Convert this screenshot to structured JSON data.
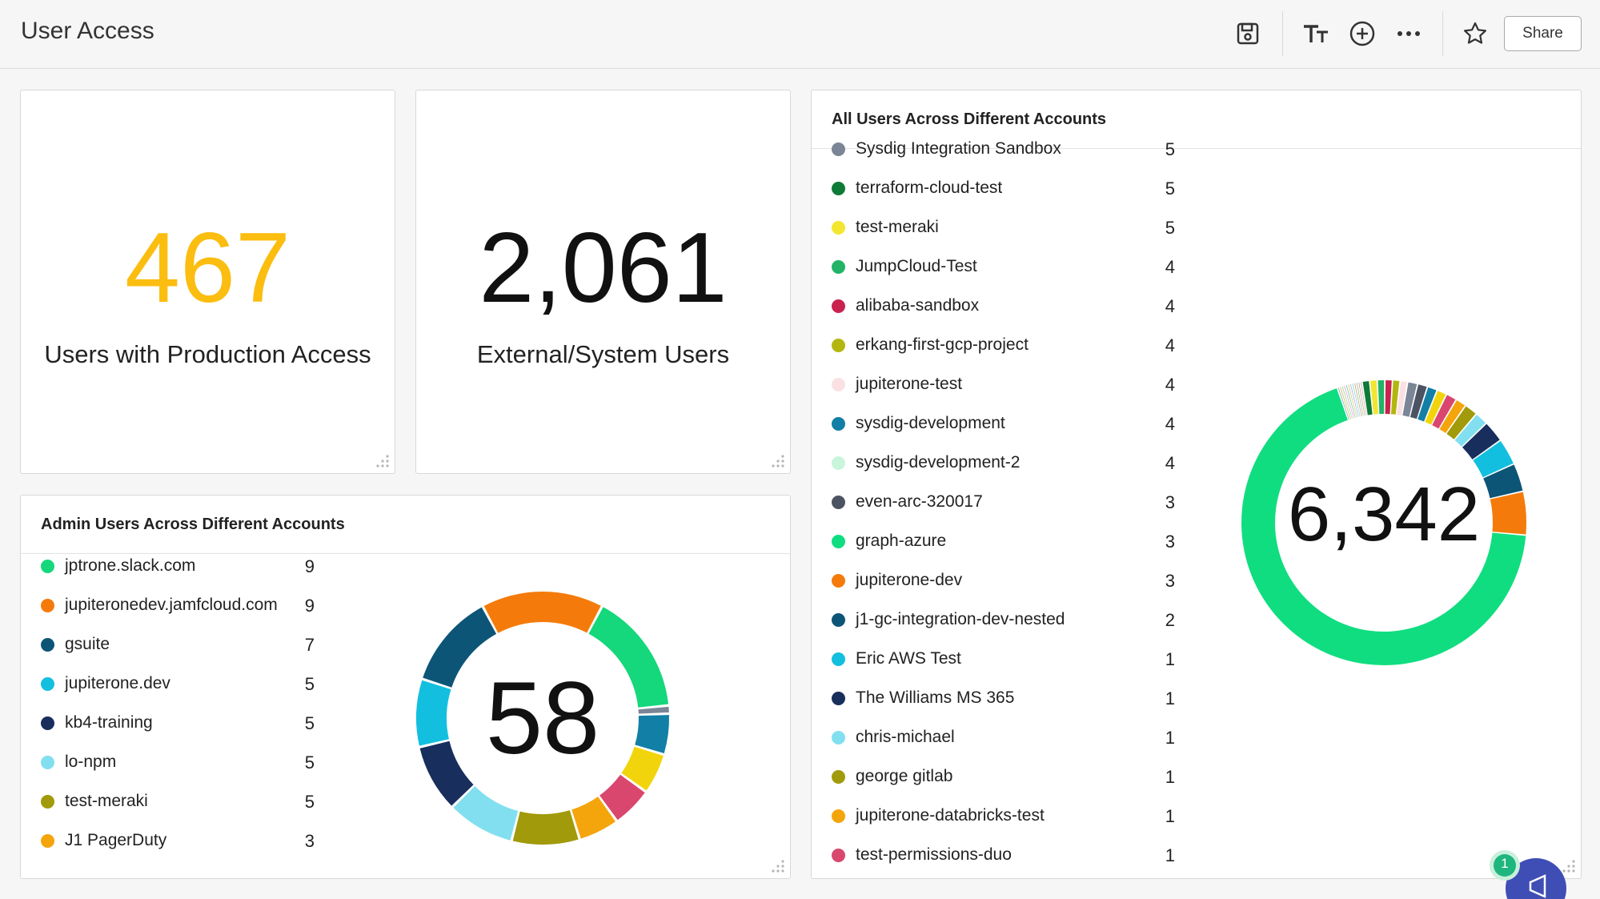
{
  "header": {
    "title": "User Access",
    "share_label": "Share",
    "icons": [
      "save-icon",
      "text-size-icon",
      "add-circle-icon",
      "more-icon",
      "star-icon"
    ]
  },
  "kpi1": {
    "value": "467",
    "label": "Users with Production Access",
    "color": "#fbbd10"
  },
  "kpi2": {
    "value": "2,061",
    "label": "External/System Users",
    "color": "#111111"
  },
  "admin_card": {
    "title": "Admin Users Across Different Accounts",
    "center": "58",
    "items": [
      {
        "name": "jptrone.slack.com",
        "value": "9",
        "color": "#15d77b"
      },
      {
        "name": "jupiteronedev.jamfcloud.com",
        "value": "9",
        "color": "#f47b0b"
      },
      {
        "name": "gsuite",
        "value": "7",
        "color": "#0d5577"
      },
      {
        "name": "jupiterone.dev",
        "value": "5",
        "color": "#13bfdf"
      },
      {
        "name": "kb4-training",
        "value": "5",
        "color": "#182e5c"
      },
      {
        "name": "lo-npm",
        "value": "5",
        "color": "#82dff0"
      },
      {
        "name": "test-meraki",
        "value": "5",
        "color": "#a19a0a"
      },
      {
        "name": "J1 PagerDuty",
        "value": "3",
        "color": "#f4a50c"
      }
    ]
  },
  "all_card": {
    "title": "All Users Across Different Accounts",
    "center": "6,342",
    "items": [
      {
        "name": "Sysdig Integration Sandbox",
        "value": "5",
        "color": "#7a8596"
      },
      {
        "name": "terraform-cloud-test",
        "value": "5",
        "color": "#0e7a37"
      },
      {
        "name": "test-meraki",
        "value": "5",
        "color": "#f2e631"
      },
      {
        "name": "JumpCloud-Test",
        "value": "4",
        "color": "#22b366"
      },
      {
        "name": "alibaba-sandbox",
        "value": "4",
        "color": "#c9224e"
      },
      {
        "name": "erkang-first-gcp-project",
        "value": "4",
        "color": "#b3b60f"
      },
      {
        "name": "jupiterone-test",
        "value": "4",
        "color": "#fbe0e3"
      },
      {
        "name": "sysdig-development",
        "value": "4",
        "color": "#127fa6"
      },
      {
        "name": "sysdig-development-2",
        "value": "4",
        "color": "#c9f5dc"
      },
      {
        "name": "even-arc-320017",
        "value": "3",
        "color": "#4c5463"
      },
      {
        "name": "graph-azure",
        "value": "3",
        "color": "#10dd80"
      },
      {
        "name": "jupiterone-dev",
        "value": "3",
        "color": "#f47b0b"
      },
      {
        "name": "j1-gc-integration-dev-nested",
        "value": "2",
        "color": "#0d5577"
      },
      {
        "name": "Eric AWS Test",
        "value": "1",
        "color": "#13bfdf"
      },
      {
        "name": "The Williams MS 365",
        "value": "1",
        "color": "#182e5c"
      },
      {
        "name": "chris-michael",
        "value": "1",
        "color": "#82dff0"
      },
      {
        "name": "george gitlab",
        "value": "1",
        "color": "#a19a0a"
      },
      {
        "name": "jupiterone-databricks-test",
        "value": "1",
        "color": "#f4a50c"
      },
      {
        "name": "test-permissions-duo",
        "value": "1",
        "color": "#d9476e"
      }
    ]
  },
  "notification": {
    "count": "1"
  }
}
